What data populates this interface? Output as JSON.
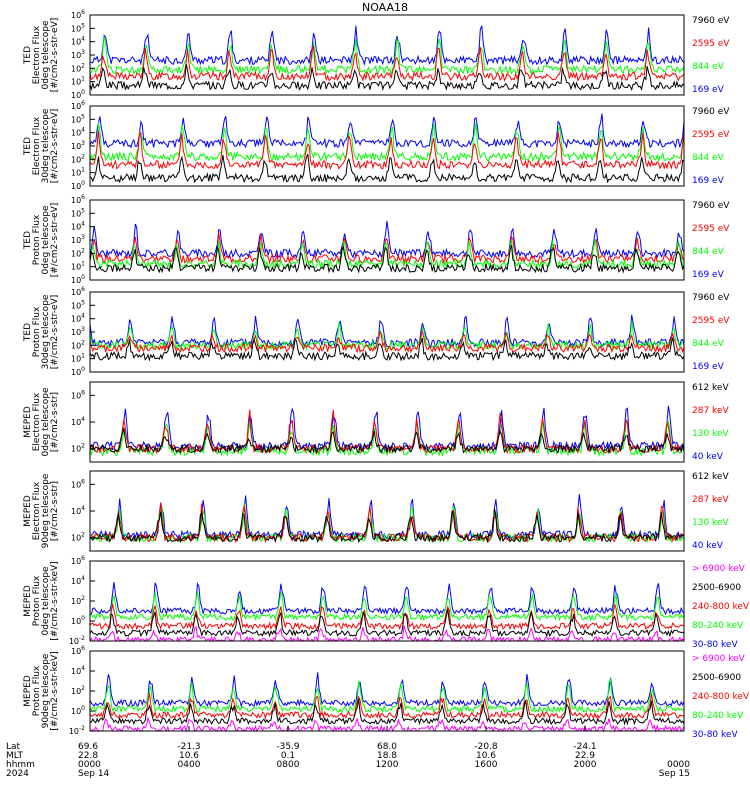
{
  "title": "NOAA18",
  "colors": {
    "blue": "#0000ff",
    "red": "#ff0000",
    "green": "#00ff00",
    "black": "#000000",
    "magenta": "#ff00ff"
  },
  "chart_data": {
    "type": "line",
    "panels": [
      {
        "ylabel_lines": [
          "TED",
          "Electron Flux",
          "0deg telescope",
          "[#/cm2-s-str-eV]"
        ],
        "log_range": [
          0,
          6
        ],
        "ticks": [
          0,
          1,
          2,
          3,
          4,
          5,
          6
        ],
        "tick_labels": [
          "10^0",
          "10^1",
          "10^2",
          "10^3",
          "10^4",
          "10^5",
          "10^6"
        ],
        "legend": [
          {
            "text": "7960 eV",
            "color": "black"
          },
          {
            "text": "2595 eV",
            "color": "red"
          },
          {
            "text": "844 eV",
            "color": "green"
          },
          {
            "text": "169 eV",
            "color": "blue"
          }
        ],
        "series": [
          {
            "color": "blue",
            "base": 2.6,
            "peak": 5.2,
            "seed": 11
          },
          {
            "color": "green",
            "base": 1.9,
            "peak": 4.4,
            "seed": 12
          },
          {
            "color": "red",
            "base": 1.4,
            "peak": 3.6,
            "seed": 13
          },
          {
            "color": "black",
            "base": 0.7,
            "peak": 2.3,
            "seed": 14
          }
        ]
      },
      {
        "ylabel_lines": [
          "TED",
          "Electron Flux",
          "30deg telescope",
          "[#/cm2-s-str-eV]"
        ],
        "log_range": [
          0,
          6
        ],
        "ticks": [
          0,
          1,
          2,
          3,
          4,
          5,
          6
        ],
        "tick_labels": [
          "10^0",
          "10^1",
          "10^2",
          "10^3",
          "10^4",
          "10^5",
          "10^6"
        ],
        "legend": [
          {
            "text": "7960 eV",
            "color": "black"
          },
          {
            "text": "2595 eV",
            "color": "red"
          },
          {
            "text": "844 eV",
            "color": "green"
          },
          {
            "text": "169 eV",
            "color": "blue"
          }
        ],
        "series": [
          {
            "color": "blue",
            "base": 3.2,
            "peak": 5.5,
            "seed": 21
          },
          {
            "color": "green",
            "base": 2.2,
            "peak": 4.8,
            "seed": 22
          },
          {
            "color": "red",
            "base": 1.6,
            "peak": 4.2,
            "seed": 23
          },
          {
            "color": "black",
            "base": 0.6,
            "peak": 2.4,
            "seed": 24
          }
        ]
      },
      {
        "ylabel_lines": [
          "TED",
          "Proton Flux",
          "0deg telescope",
          "[#/cm2-s-str-eV]"
        ],
        "log_range": [
          0,
          6
        ],
        "ticks": [
          0,
          1,
          2,
          3,
          4,
          5,
          6
        ],
        "tick_labels": [
          "10^0",
          "10^1",
          "10^2",
          "10^3",
          "10^4",
          "10^5",
          "10^6"
        ],
        "legend": [
          {
            "text": "7960 eV",
            "color": "black"
          },
          {
            "text": "2595 eV",
            "color": "red"
          },
          {
            "text": "844 eV",
            "color": "green"
          },
          {
            "text": "169 eV",
            "color": "blue"
          }
        ],
        "series": [
          {
            "color": "blue",
            "base": 2.0,
            "peak": 4.2,
            "seed": 31
          },
          {
            "color": "red",
            "base": 1.6,
            "peak": 3.4,
            "seed": 32
          },
          {
            "color": "green",
            "base": 1.2,
            "peak": 3.0,
            "seed": 33
          },
          {
            "color": "black",
            "base": 0.9,
            "peak": 2.6,
            "seed": 34
          }
        ]
      },
      {
        "ylabel_lines": [
          "TED",
          "Proton Flux",
          "30deg telescope",
          "[#/cm2-s-str-eV]"
        ],
        "log_range": [
          0,
          6
        ],
        "ticks": [
          0,
          1,
          2,
          3,
          4,
          5,
          6
        ],
        "tick_labels": [
          "10^0",
          "10^1",
          "10^2",
          "10^3",
          "10^4",
          "10^5",
          "10^6"
        ],
        "legend": [
          {
            "text": "7960 eV",
            "color": "black"
          },
          {
            "text": "2595 eV",
            "color": "red"
          },
          {
            "text": "844 eV",
            "color": "green"
          },
          {
            "text": "169 eV",
            "color": "blue"
          }
        ],
        "series": [
          {
            "color": "blue",
            "base": 2.2,
            "peak": 4.4,
            "seed": 41
          },
          {
            "color": "green",
            "base": 2.0,
            "peak": 3.6,
            "seed": 42
          },
          {
            "color": "red",
            "base": 1.8,
            "peak": 3.0,
            "seed": 43
          },
          {
            "color": "black",
            "base": 1.2,
            "peak": 2.4,
            "seed": 44
          }
        ]
      },
      {
        "ylabel_lines": [
          "MEPED",
          "Electron Flux",
          "0deg telescope",
          "[#/cm2-s-str]"
        ],
        "log_range": [
          1,
          7
        ],
        "ticks": [
          2,
          4,
          6
        ],
        "tick_labels": [
          "10^2",
          "10^4",
          "10^6"
        ],
        "legend": [
          {
            "text": "612 keV",
            "color": "black"
          },
          {
            "text": "287 keV",
            "color": "red"
          },
          {
            "text": "130 keV",
            "color": "green"
          },
          {
            "text": "40 keV",
            "color": "blue"
          }
        ],
        "series": [
          {
            "color": "blue",
            "base": 2.2,
            "peak": 5.4,
            "seed": 51
          },
          {
            "color": "green",
            "base": 1.8,
            "peak": 4.2,
            "seed": 52
          },
          {
            "color": "red",
            "base": 2.0,
            "peak": 4.8,
            "seed": 53
          },
          {
            "color": "black",
            "base": 2.0,
            "peak": 3.4,
            "seed": 54
          }
        ]
      },
      {
        "ylabel_lines": [
          "MEPED",
          "Electron Flux",
          "90deg telescope",
          "[#/cm2-s-str]"
        ],
        "log_range": [
          1,
          7
        ],
        "ticks": [
          2,
          4,
          6
        ],
        "tick_labels": [
          "10^2",
          "10^4",
          "10^6"
        ],
        "legend": [
          {
            "text": "612 keV",
            "color": "black"
          },
          {
            "text": "287 keV",
            "color": "red"
          },
          {
            "text": "130 keV",
            "color": "green"
          },
          {
            "text": "40 keV",
            "color": "blue"
          }
        ],
        "series": [
          {
            "color": "blue",
            "base": 2.2,
            "peak": 5.2,
            "seed": 61
          },
          {
            "color": "green",
            "base": 2.0,
            "peak": 4.6,
            "seed": 62
          },
          {
            "color": "red",
            "base": 2.0,
            "peak": 4.6,
            "seed": 63
          },
          {
            "color": "black",
            "base": 2.0,
            "peak": 4.2,
            "seed": 64
          }
        ]
      },
      {
        "ylabel_lines": [
          "MEPED",
          "Proton Flux",
          "0deg telescope",
          "[#/cm2-s-str-keV]"
        ],
        "log_range": [
          -2,
          6
        ],
        "ticks": [
          -2,
          0,
          2,
          4,
          6
        ],
        "tick_labels": [
          "10^-2",
          "10^0",
          "10^2",
          "10^4",
          "10^6"
        ],
        "legend": [
          {
            "text": "> 6900 keV",
            "color": "magenta"
          },
          {
            "text": "2500-6900",
            "color": "black"
          },
          {
            "text": "240-800 keV",
            "color": "red"
          },
          {
            "text": "80-240 keV",
            "color": "green"
          },
          {
            "text": "30-80 keV",
            "color": "blue"
          }
        ],
        "series": [
          {
            "color": "blue",
            "base": 1.0,
            "peak": 4.2,
            "seed": 71
          },
          {
            "color": "green",
            "base": 0.4,
            "peak": 3.0,
            "seed": 72
          },
          {
            "color": "red",
            "base": -0.5,
            "peak": 1.6,
            "seed": 73
          },
          {
            "color": "black",
            "base": -1.2,
            "peak": 1.2,
            "seed": 74
          },
          {
            "color": "magenta",
            "base": -1.9,
            "peak": -0.6,
            "seed": 75
          }
        ]
      },
      {
        "ylabel_lines": [
          "MEPED",
          "Proton Flux",
          "90deg telescope",
          "[#/cm2-s-str-keV]"
        ],
        "log_range": [
          -2,
          6
        ],
        "ticks": [
          -2,
          0,
          2,
          4,
          6
        ],
        "tick_labels": [
          "10^-2",
          "10^0",
          "10^2",
          "10^4",
          "10^6"
        ],
        "legend": [
          {
            "text": "> 6900 keV",
            "color": "magenta"
          },
          {
            "text": "2500-6900",
            "color": "black"
          },
          {
            "text": "240-800 keV",
            "color": "red"
          },
          {
            "text": "80-240 keV",
            "color": "green"
          },
          {
            "text": "30-80 keV",
            "color": "blue"
          }
        ],
        "series": [
          {
            "color": "blue",
            "base": 0.8,
            "peak": 3.8,
            "seed": 81
          },
          {
            "color": "green",
            "base": 0.2,
            "peak": 3.2,
            "seed": 82
          },
          {
            "color": "red",
            "base": -0.4,
            "peak": 1.8,
            "seed": 83
          },
          {
            "color": "black",
            "base": -1.0,
            "peak": 1.2,
            "seed": 84
          },
          {
            "color": "magenta",
            "base": -1.8,
            "peak": -0.8,
            "seed": 85
          }
        ]
      }
    ],
    "x_axis": {
      "range_hours": [
        0,
        24
      ],
      "row_labels": [
        "Lat",
        "MLT",
        "hhmm",
        "2024"
      ],
      "ticks": [
        {
          "hour": 0,
          "lat": "69.6",
          "mlt": "22.8",
          "hhmm": "0000",
          "date": "Sep 14"
        },
        {
          "hour": 4,
          "lat": "-21.3",
          "mlt": "10.6",
          "hhmm": "0400",
          "date": ""
        },
        {
          "hour": 8,
          "lat": "-35.9",
          "mlt": "0.1",
          "hhmm": "0800",
          "date": ""
        },
        {
          "hour": 12,
          "lat": "68.0",
          "mlt": "18.8",
          "hhmm": "1200",
          "date": ""
        },
        {
          "hour": 16,
          "lat": "-20.8",
          "mlt": "10.6",
          "hhmm": "1600",
          "date": ""
        },
        {
          "hour": 20,
          "lat": "-24.1",
          "mlt": "22.9",
          "hhmm": "2000",
          "date": ""
        },
        {
          "hour": 24,
          "lat": "",
          "mlt": "",
          "hhmm": "0000",
          "date": "Sep 15"
        }
      ]
    }
  }
}
